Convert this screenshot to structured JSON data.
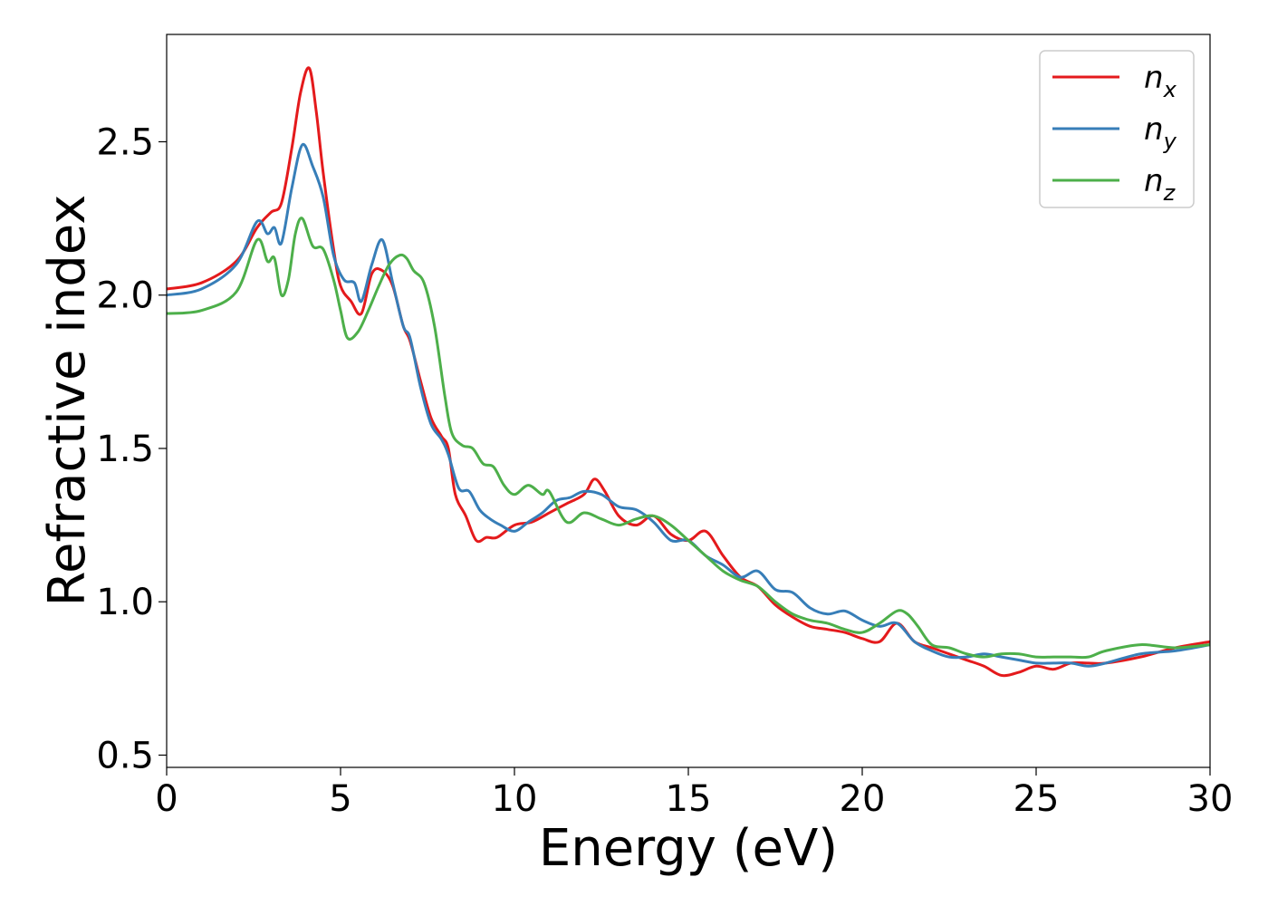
{
  "chart_data": {
    "type": "line",
    "title": "",
    "xlabel": "Energy (eV)",
    "ylabel": "Refractive index",
    "xlim": [
      0,
      30
    ],
    "ylim": [
      0.46,
      2.85
    ],
    "xticks": [
      0,
      5,
      10,
      15,
      20,
      25,
      30
    ],
    "yticks": [
      0.5,
      1.0,
      1.5,
      2.0,
      2.5
    ],
    "xtick_labels": [
      "0",
      "5",
      "10",
      "15",
      "20",
      "25",
      "30"
    ],
    "ytick_labels": [
      "0.5",
      "1.0",
      "1.5",
      "2.0",
      "2.5"
    ],
    "grid": false,
    "legend_position": "top-right",
    "series": [
      {
        "name": "n",
        "subscript": "x",
        "color": "#e41a1c",
        "x": [
          0,
          1,
          2,
          2.6,
          3.0,
          3.3,
          3.6,
          3.85,
          4.1,
          4.3,
          4.5,
          4.8,
          5.0,
          5.3,
          5.6,
          5.9,
          6.2,
          6.5,
          6.8,
          7.0,
          7.3,
          7.6,
          7.9,
          8.1,
          8.3,
          8.6,
          8.9,
          9.2,
          9.5,
          10.0,
          10.5,
          11.0,
          11.5,
          12.0,
          12.3,
          12.6,
          13.0,
          13.5,
          14.0,
          14.5,
          15.0,
          15.5,
          16.0,
          16.5,
          17.0,
          17.5,
          18.0,
          18.5,
          19.0,
          19.5,
          20.0,
          20.5,
          21.0,
          21.5,
          22.0,
          22.5,
          23.0,
          23.5,
          24.0,
          24.5,
          25.0,
          25.5,
          26.0,
          26.5,
          27.0,
          28.0,
          29.0,
          30.0
        ],
        "y": [
          2.02,
          2.04,
          2.11,
          2.22,
          2.27,
          2.3,
          2.48,
          2.66,
          2.74,
          2.6,
          2.4,
          2.15,
          2.03,
          1.98,
          1.94,
          2.07,
          2.08,
          2.03,
          1.9,
          1.85,
          1.72,
          1.6,
          1.54,
          1.5,
          1.35,
          1.28,
          1.2,
          1.21,
          1.21,
          1.25,
          1.26,
          1.29,
          1.32,
          1.35,
          1.4,
          1.36,
          1.28,
          1.25,
          1.28,
          1.22,
          1.2,
          1.23,
          1.15,
          1.08,
          1.05,
          0.99,
          0.95,
          0.92,
          0.91,
          0.9,
          0.88,
          0.87,
          0.93,
          0.87,
          0.85,
          0.83,
          0.81,
          0.79,
          0.76,
          0.77,
          0.79,
          0.78,
          0.8,
          0.8,
          0.8,
          0.82,
          0.85,
          0.87
        ]
      },
      {
        "name": "n",
        "subscript": "y",
        "color": "#377eb8",
        "x": [
          0,
          1,
          2,
          2.6,
          2.9,
          3.1,
          3.3,
          3.6,
          3.9,
          4.2,
          4.5,
          4.8,
          5.1,
          5.4,
          5.6,
          5.9,
          6.2,
          6.5,
          6.8,
          7.0,
          7.3,
          7.6,
          7.9,
          8.1,
          8.4,
          8.7,
          9.0,
          9.3,
          9.6,
          10.0,
          10.4,
          10.8,
          11.2,
          11.6,
          12.0,
          12.5,
          13.0,
          13.5,
          14.0,
          14.5,
          15.0,
          15.5,
          16.0,
          16.5,
          17.0,
          17.5,
          18.0,
          18.5,
          19.0,
          19.5,
          20.0,
          20.5,
          21.0,
          21.5,
          22.0,
          22.5,
          23.0,
          23.5,
          24.0,
          24.5,
          25.0,
          25.5,
          26.0,
          26.5,
          27.0,
          28.0,
          29.0,
          30.0
        ],
        "y": [
          2.0,
          2.02,
          2.1,
          2.24,
          2.2,
          2.22,
          2.17,
          2.35,
          2.49,
          2.42,
          2.32,
          2.13,
          2.05,
          2.04,
          1.98,
          2.1,
          2.18,
          2.04,
          1.9,
          1.86,
          1.7,
          1.58,
          1.53,
          1.48,
          1.37,
          1.36,
          1.3,
          1.27,
          1.25,
          1.23,
          1.26,
          1.29,
          1.33,
          1.34,
          1.36,
          1.35,
          1.31,
          1.3,
          1.26,
          1.2,
          1.2,
          1.15,
          1.12,
          1.08,
          1.1,
          1.04,
          1.03,
          0.98,
          0.96,
          0.97,
          0.94,
          0.92,
          0.93,
          0.87,
          0.84,
          0.82,
          0.82,
          0.83,
          0.82,
          0.81,
          0.8,
          0.8,
          0.8,
          0.79,
          0.8,
          0.83,
          0.84,
          0.86
        ]
      },
      {
        "name": "n",
        "subscript": "z",
        "color": "#4daf4a",
        "x": [
          0,
          1,
          2,
          2.6,
          2.9,
          3.1,
          3.3,
          3.5,
          3.7,
          3.9,
          4.2,
          4.5,
          4.8,
          5.0,
          5.2,
          5.5,
          5.8,
          6.1,
          6.4,
          6.7,
          6.9,
          7.1,
          7.4,
          7.7,
          8.0,
          8.2,
          8.5,
          8.8,
          9.1,
          9.4,
          9.7,
          10.0,
          10.4,
          10.8,
          11.0,
          11.5,
          12.0,
          12.5,
          13.0,
          13.5,
          14.0,
          14.5,
          15.0,
          15.5,
          16.0,
          16.5,
          17.0,
          17.5,
          18.0,
          18.5,
          19.0,
          19.5,
          20.0,
          20.5,
          21.0,
          21.3,
          21.6,
          22.0,
          22.5,
          23.0,
          23.5,
          24.0,
          24.5,
          25.0,
          25.5,
          26.0,
          26.5,
          27.0,
          28.0,
          29.0,
          30.0
        ],
        "y": [
          1.94,
          1.95,
          2.01,
          2.18,
          2.11,
          2.12,
          2.0,
          2.05,
          2.2,
          2.25,
          2.16,
          2.15,
          2.05,
          1.95,
          1.86,
          1.88,
          1.95,
          2.03,
          2.1,
          2.13,
          2.12,
          2.08,
          2.04,
          1.9,
          1.67,
          1.55,
          1.51,
          1.5,
          1.45,
          1.44,
          1.38,
          1.35,
          1.38,
          1.35,
          1.36,
          1.26,
          1.29,
          1.27,
          1.25,
          1.27,
          1.28,
          1.25,
          1.2,
          1.15,
          1.1,
          1.07,
          1.05,
          1.0,
          0.96,
          0.94,
          0.93,
          0.91,
          0.9,
          0.93,
          0.97,
          0.96,
          0.92,
          0.86,
          0.85,
          0.83,
          0.82,
          0.83,
          0.83,
          0.82,
          0.82,
          0.82,
          0.82,
          0.84,
          0.86,
          0.85,
          0.86
        ]
      }
    ]
  }
}
